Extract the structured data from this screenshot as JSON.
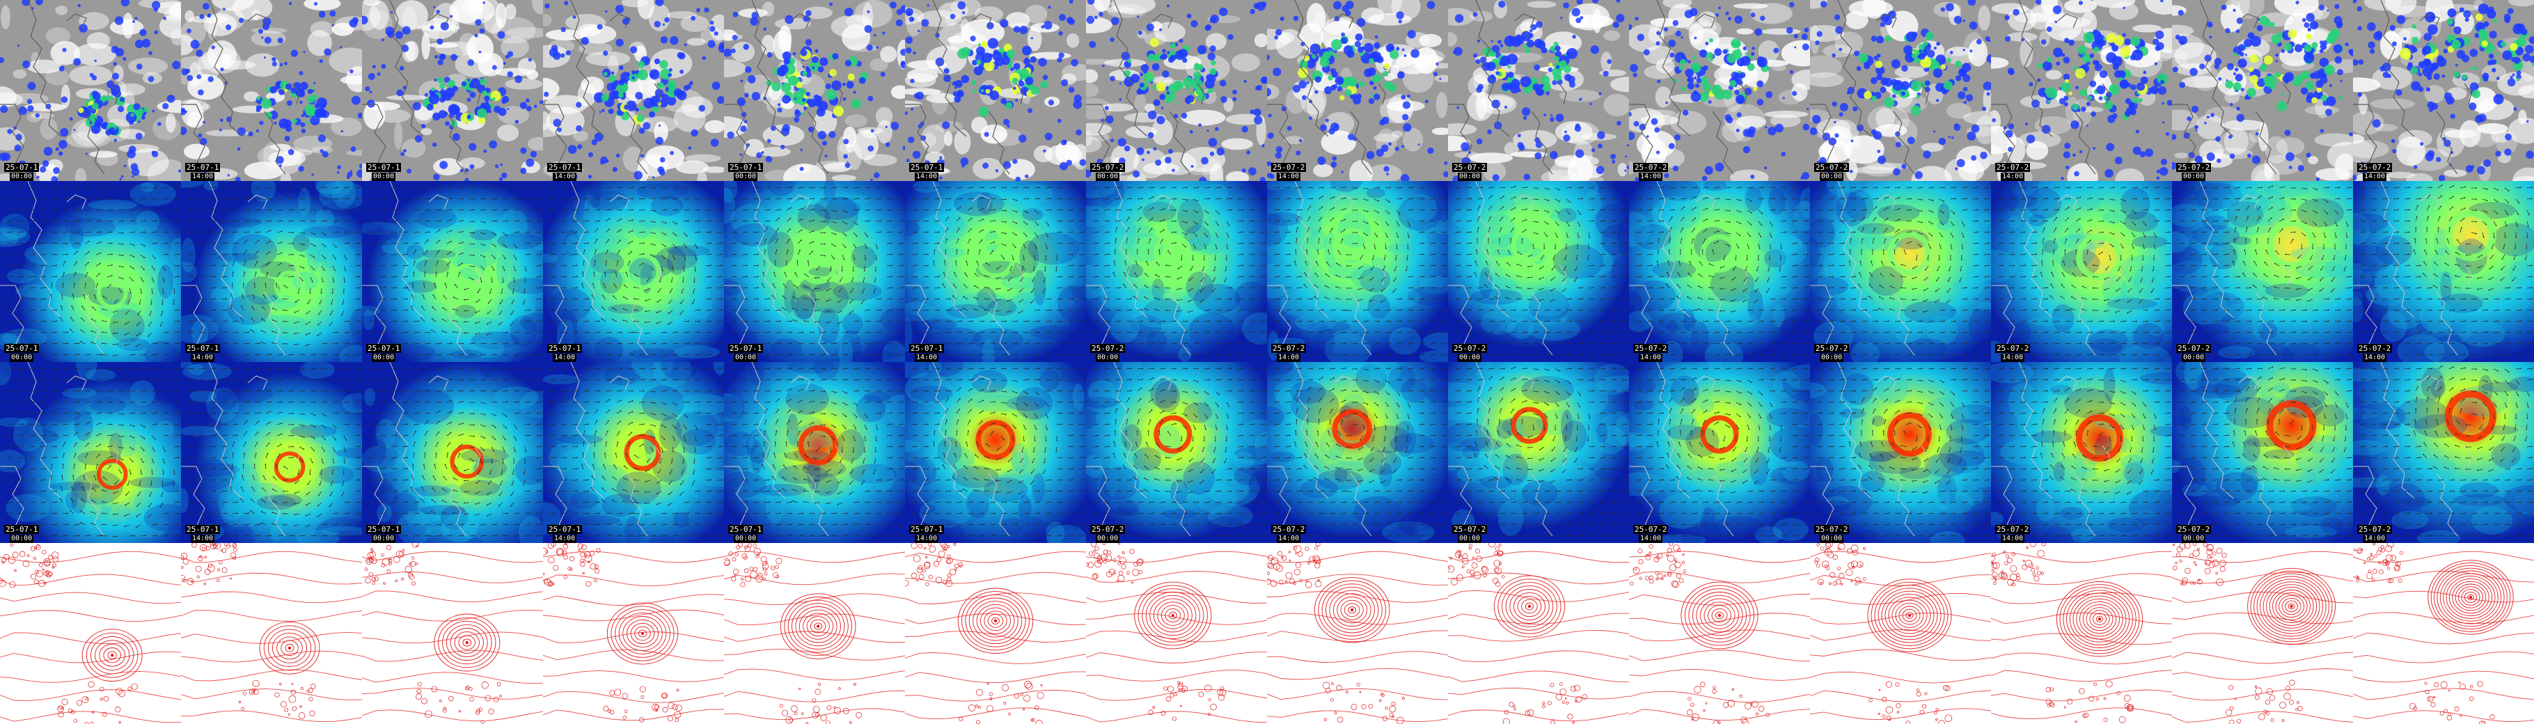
{
  "rows": [
    {
      "kind": "satellite",
      "colors": {
        "cloud_gray": "#9a9a9a",
        "ice": "#ffffff",
        "rain_blue": "#1f3cff",
        "rain_green": "#28d07a",
        "rain_yellow": "#e8ff39"
      },
      "labels": [
        "25-07-1",
        "25-07-1",
        "25-07-1",
        "25-07-1",
        "25-07-1",
        "25-07-1",
        "25-07-2",
        "25-07-2",
        "25-07-2",
        "25-07-2",
        "25-07-2",
        "25-07-2",
        "25-07-2",
        "25-07-2"
      ],
      "times": [
        "00:00",
        "14:00",
        "00:00",
        "14:00",
        "00:00",
        "14:00",
        "00:00",
        "14:00",
        "00:00",
        "14:00",
        "00:00",
        "14:00",
        "00:00",
        "14:00"
      ]
    },
    {
      "kind": "wind-moderate",
      "colors": {
        "low": "#0a1fa8",
        "mid": "#19c6e6",
        "high": "#7dff6b",
        "peak": "#ffe33b",
        "arrow": "#2b2b2b"
      },
      "labels": [
        "25-07-1",
        "25-07-1",
        "25-07-1",
        "25-07-1",
        "25-07-1",
        "25-07-1",
        "25-07-2",
        "25-07-2",
        "25-07-2",
        "25-07-2",
        "25-07-2",
        "25-07-2",
        "25-07-2",
        "25-07-2"
      ],
      "times": [
        "00:00",
        "14:00",
        "00:00",
        "14:00",
        "00:00",
        "14:00",
        "00:00",
        "14:00",
        "00:00",
        "14:00",
        "00:00",
        "14:00",
        "00:00",
        "14:00"
      ]
    },
    {
      "kind": "wind-strong",
      "colors": {
        "low": "#0a1fa8",
        "mid": "#19c6e6",
        "high": "#b9ff3a",
        "peak": "#ff2a00",
        "arrow": "#2b2b2b"
      },
      "labels": [
        "25-07-1",
        "25-07-1",
        "25-07-1",
        "25-07-1",
        "25-07-1",
        "25-07-1",
        "25-07-2",
        "25-07-2",
        "25-07-2",
        "25-07-2",
        "25-07-2",
        "25-07-2",
        "25-07-2",
        "25-07-2"
      ],
      "times": [
        "00:00",
        "14:00",
        "00:00",
        "14:00",
        "00:00",
        "14:00",
        "00:00",
        "14:00",
        "00:00",
        "14:00",
        "00:00",
        "14:00",
        "00:00",
        "14:00"
      ]
    },
    {
      "kind": "pressure-contours",
      "colors": {
        "background": "#ffffff",
        "contour": "#e21b1b"
      },
      "labels": [],
      "times": []
    }
  ],
  "storm_track": [
    [
      0.62,
      0.62
    ],
    [
      0.6,
      0.58
    ],
    [
      0.58,
      0.55
    ],
    [
      0.55,
      0.5
    ],
    [
      0.52,
      0.46
    ],
    [
      0.5,
      0.43
    ],
    [
      0.48,
      0.4
    ],
    [
      0.47,
      0.37
    ],
    [
      0.45,
      0.35
    ],
    [
      0.5,
      0.4
    ],
    [
      0.55,
      0.4
    ],
    [
      0.6,
      0.42
    ],
    [
      0.66,
      0.35
    ],
    [
      0.65,
      0.3
    ]
  ],
  "storm_intensity": [
    0.3,
    0.3,
    0.4,
    0.5,
    0.6,
    0.6,
    0.55,
    0.6,
    0.5,
    0.55,
    0.75,
    0.85,
    0.95,
    1.0
  ]
}
